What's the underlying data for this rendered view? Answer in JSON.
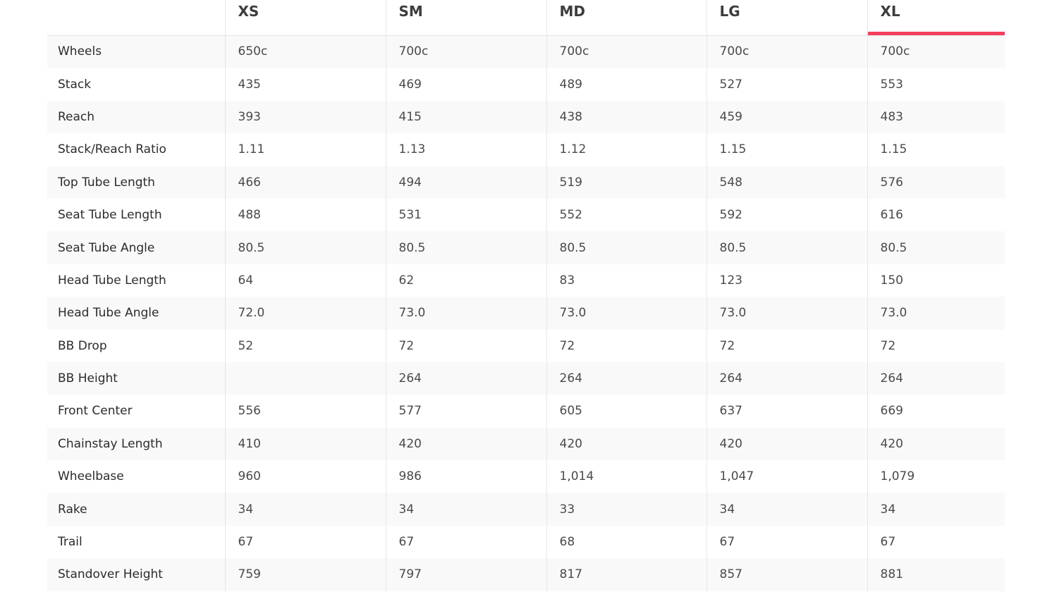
{
  "accent_color": "#f43f5e",
  "selected_size": "XL",
  "sizes": [
    "XS",
    "SM",
    "MD",
    "LG",
    "XL"
  ],
  "rows": [
    {
      "label": "Wheels",
      "values": [
        "650c",
        "700c",
        "700c",
        "700c",
        "700c"
      ]
    },
    {
      "label": "Stack",
      "values": [
        "435",
        "469",
        "489",
        "527",
        "553"
      ]
    },
    {
      "label": "Reach",
      "values": [
        "393",
        "415",
        "438",
        "459",
        "483"
      ]
    },
    {
      "label": "Stack/Reach Ratio",
      "values": [
        "1.11",
        "1.13",
        "1.12",
        "1.15",
        "1.15"
      ]
    },
    {
      "label": "Top Tube Length",
      "values": [
        "466",
        "494",
        "519",
        "548",
        "576"
      ]
    },
    {
      "label": "Seat Tube Length",
      "values": [
        "488",
        "531",
        "552",
        "592",
        "616"
      ]
    },
    {
      "label": "Seat Tube Angle",
      "values": [
        "80.5",
        "80.5",
        "80.5",
        "80.5",
        "80.5"
      ]
    },
    {
      "label": "Head Tube Length",
      "values": [
        "64",
        "62",
        "83",
        "123",
        "150"
      ]
    },
    {
      "label": "Head Tube Angle",
      "values": [
        "72.0",
        "73.0",
        "73.0",
        "73.0",
        "73.0"
      ]
    },
    {
      "label": "BB Drop",
      "values": [
        "52",
        "72",
        "72",
        "72",
        "72"
      ]
    },
    {
      "label": "BB Height",
      "values": [
        "",
        "264",
        "264",
        "264",
        "264"
      ]
    },
    {
      "label": "Front Center",
      "values": [
        "556",
        "577",
        "605",
        "637",
        "669"
      ]
    },
    {
      "label": "Chainstay Length",
      "values": [
        "410",
        "420",
        "420",
        "420",
        "420"
      ]
    },
    {
      "label": "Wheelbase",
      "values": [
        "960",
        "986",
        "1,014",
        "1,047",
        "1,079"
      ]
    },
    {
      "label": "Rake",
      "values": [
        "34",
        "34",
        "33",
        "34",
        "34"
      ]
    },
    {
      "label": "Trail",
      "values": [
        "67",
        "67",
        "68",
        "67",
        "67"
      ]
    },
    {
      "label": "Standover Height",
      "values": [
        "759",
        "797",
        "817",
        "857",
        "881"
      ]
    }
  ]
}
